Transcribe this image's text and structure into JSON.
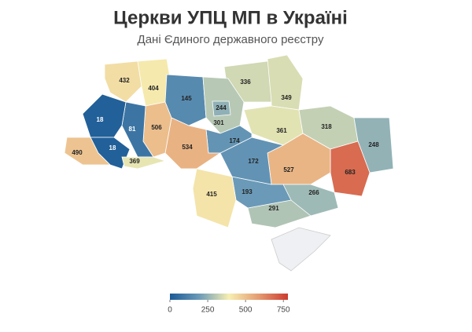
{
  "chart_data": {
    "type": "choropleth",
    "title": "Церкви УПЦ МП в Україні",
    "subtitle": "Дані Єдиного державного реєстру",
    "values": [
      432,
      404,
      145,
      336,
      301,
      244,
      349,
      361,
      318,
      248,
      683,
      527,
      266,
      291,
      193,
      172,
      174,
      415,
      534,
      506,
      81,
      18,
      18,
      490,
      369
    ],
    "colorbar": {
      "lim": [
        0,
        780
      ],
      "ticks": [
        0,
        250,
        500,
        750
      ],
      "colors": [
        "#1a5a96",
        "#6c9bb8",
        "#f6efb2",
        "#e49c72",
        "#cc3b2e"
      ]
    }
  }
}
